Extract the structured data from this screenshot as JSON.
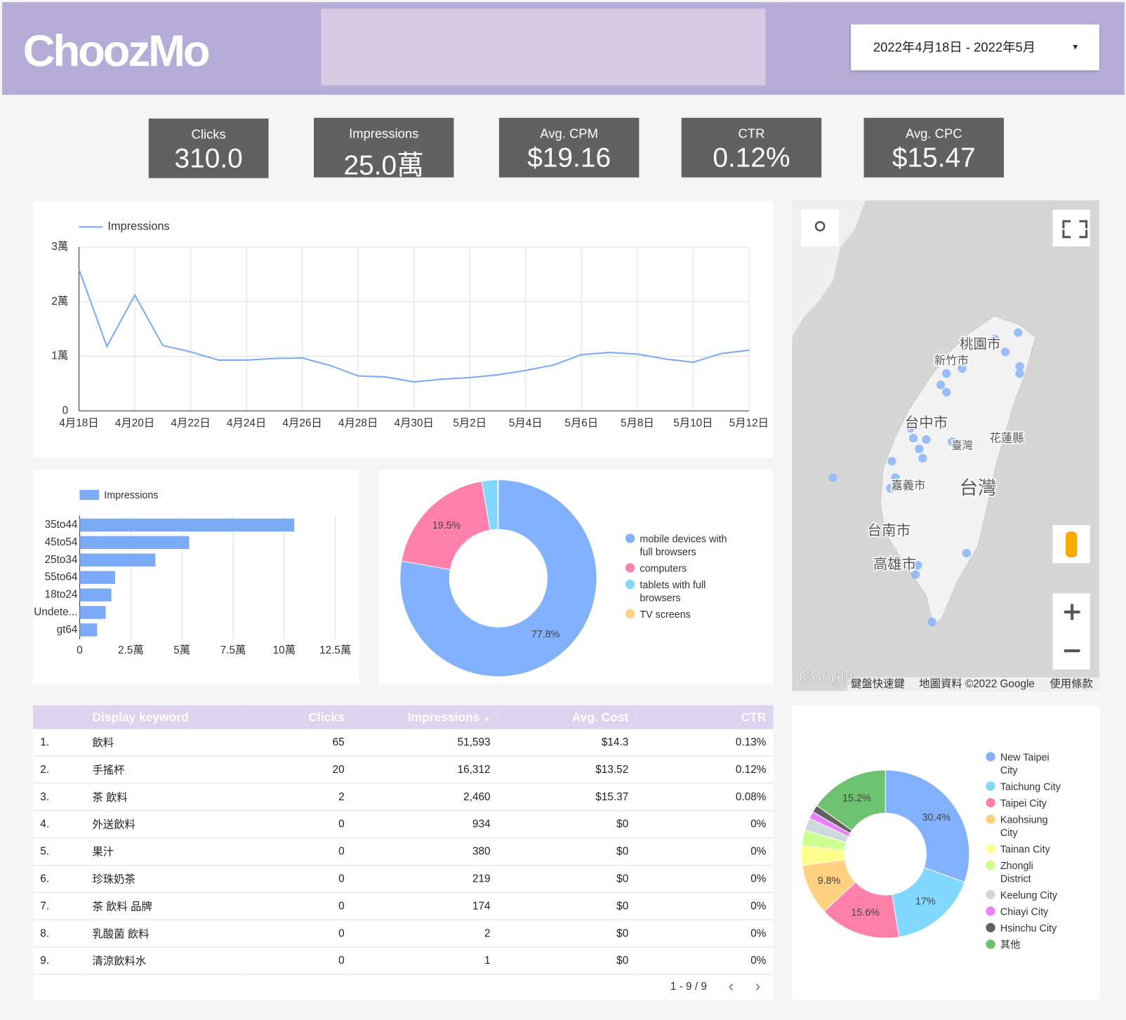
{
  "header": {
    "logo": "ChoozMo",
    "date_range": "2022年4月18日 - 2022年5月"
  },
  "scorecards": [
    {
      "label": "Clicks",
      "value": "310.0"
    },
    {
      "label": "Impressions",
      "value": "25.0萬"
    },
    {
      "label": "Avg. CPM",
      "value": "$19.16"
    },
    {
      "label": "CTR",
      "value": "0.12%"
    },
    {
      "label": "Avg. CPC",
      "value": "$15.47"
    }
  ],
  "chart_data": [
    {
      "type": "line",
      "categories": [
        "4月18日",
        null,
        "4月20日",
        null,
        "4月22日",
        null,
        "4月24日",
        null,
        "4月26日",
        null,
        "4月28日",
        null,
        "4月30日",
        null,
        "5月2日",
        null,
        "5月4日",
        null,
        "5月6日",
        null,
        "5月8日",
        null,
        "5月10日",
        null,
        "5月12日"
      ],
      "series": [
        {
          "name": "Impressions",
          "color": "#7baaf7",
          "values": [
            25900,
            11800,
            21200,
            12000,
            10800,
            9300,
            9300,
            9600,
            9700,
            8300,
            6400,
            6200,
            5300,
            5800,
            6100,
            6600,
            7400,
            8400,
            10300,
            10700,
            10400,
            9500,
            8900,
            10500,
            11100
          ]
        }
      ],
      "ylim": [
        0,
        30000
      ],
      "yticks": [
        0,
        {
          "value": 10000,
          "label": "1萬"
        },
        {
          "value": 20000,
          "label": "2萬"
        },
        {
          "value": 30000,
          "label": "3萬"
        }
      ],
      "grid": true,
      "legend": "top"
    },
    {
      "type": "bar",
      "orientation": "horizontal",
      "categories": [
        "35to44",
        "45to54",
        "25to34",
        "55to64",
        "18to24",
        "Undete...",
        "gt64"
      ],
      "series": [
        {
          "name": "Impressions",
          "color": "#7baaf7",
          "values": [
            104900,
            53500,
            37000,
            17300,
            15500,
            12700,
            8500
          ]
        }
      ],
      "xlim": [
        0,
        125000
      ],
      "xticks": [
        0,
        {
          "value": 25000,
          "label": "2.5萬"
        },
        {
          "value": 50000,
          "label": "5萬"
        },
        {
          "value": 75000,
          "label": "7.5萬"
        },
        {
          "value": 100000,
          "label": "10萬"
        },
        {
          "value": 125000,
          "label": "12.5萬"
        }
      ],
      "grid": true,
      "legend": "top"
    },
    {
      "type": "donut",
      "categories": [
        "mobile devices with full browsers",
        "computers",
        "tablets with full browsers",
        "TV screens"
      ],
      "values": [
        77.8,
        19.5,
        2.6,
        0.1
      ],
      "value_labels": [
        "77.8%",
        "19.5%",
        null,
        null
      ],
      "colors": [
        "#82b1ff",
        "#ff80ab",
        "#80d8ff",
        "#ffd180"
      ],
      "legend": "right"
    },
    {
      "type": "donut",
      "categories": [
        "New Taipei City",
        "Taichung City",
        "Taipei City",
        "Kaohsiung City",
        "Tainan City",
        "Zhongli District",
        "Keelung City",
        "Chiayi City",
        "Hsinchu City",
        "其他"
      ],
      "values": [
        30.4,
        17,
        15.6,
        9.8,
        3.8,
        3.0,
        2.4,
        1.4,
        1.4,
        15.2
      ],
      "value_labels": [
        "30.4%",
        "17%",
        "15.6%",
        "9.8%",
        null,
        null,
        null,
        null,
        null,
        "15.2%"
      ],
      "colors": [
        "#82b1ff",
        "#80d8ff",
        "#ff80ab",
        "#ffd180",
        "#ffff8d",
        "#ccff90",
        "#cfd8dc",
        "#ea80fc",
        "#616161",
        "#6cc26e"
      ],
      "legend": "right"
    }
  ],
  "table": {
    "columns": [
      "Display keyword",
      "Clicks",
      "Impressions",
      "Avg. Cost",
      "CTR"
    ],
    "rows": [
      [
        "1.",
        "飲料",
        "65",
        "51,593",
        "$14.3",
        "0.13%"
      ],
      [
        "2.",
        "手搖杯",
        "20",
        "16,312",
        "$13.52",
        "0.12%"
      ],
      [
        "3.",
        "茶 飲料",
        "2",
        "2,460",
        "$15.37",
        "0.08%"
      ],
      [
        "4.",
        "外送飲料",
        "0",
        "934",
        "$0",
        "0%"
      ],
      [
        "5.",
        "果汁",
        "0",
        "380",
        "$0",
        "0%"
      ],
      [
        "6.",
        "珍珠奶茶",
        "0",
        "219",
        "$0",
        "0%"
      ],
      [
        "7.",
        "茶 飲料 品牌",
        "0",
        "174",
        "$0",
        "0%"
      ],
      [
        "8.",
        "乳酸菌 飲料",
        "0",
        "2",
        "$0",
        "0%"
      ],
      [
        "9.",
        "清涼飲料水",
        "0",
        "1",
        "$0",
        "0%"
      ]
    ],
    "pagination": "1 - 9 / 9"
  },
  "map": {
    "labels": [
      "桃園市",
      "新竹市",
      "台中市",
      "臺灣",
      "花蓮縣",
      "嘉義市",
      "台灣",
      "台南市",
      "高雄市"
    ],
    "brand": "Google",
    "footer": [
      "鍵盤快速鍵",
      "地圖資料 ©2022 Google",
      "使用條款"
    ]
  }
}
